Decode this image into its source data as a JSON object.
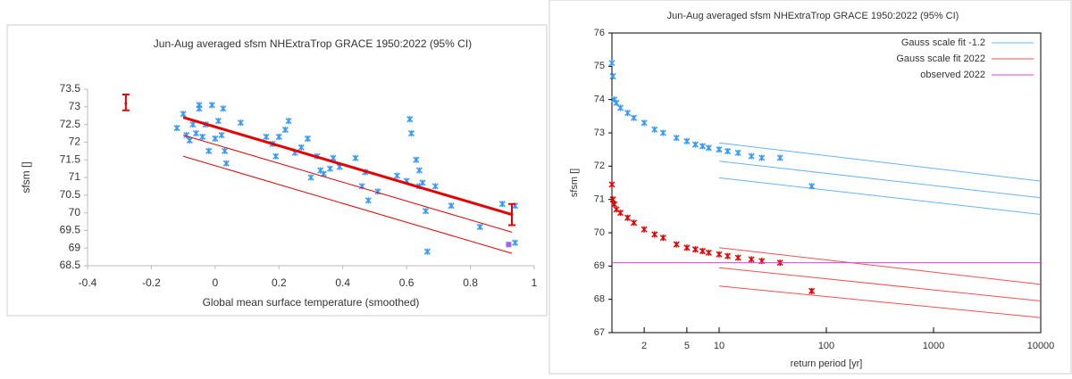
{
  "chart_data": [
    {
      "type": "scatter",
      "title": "Jun-Aug averaged  sfsm NHExtraTrop GRACE 1950:2022 (95% CI)",
      "xlabel": "Global mean surface temperature (smoothed)",
      "ylabel": "sfsm []",
      "xlim": [
        -0.4,
        1
      ],
      "xticks": [
        -0.4,
        -0.2,
        0,
        0.2,
        0.4,
        0.6,
        0.8,
        1
      ],
      "ylim": [
        68.5,
        73.5
      ],
      "yticks": [
        68.5,
        69,
        69.5,
        70,
        70.5,
        71,
        71.5,
        72,
        72.5,
        73,
        73.5
      ],
      "color": "#3399ff",
      "x": [
        -0.12,
        -0.1,
        -0.09,
        -0.08,
        -0.07,
        -0.06,
        -0.05,
        -0.05,
        -0.04,
        -0.03,
        -0.02,
        -0.01,
        0.0,
        0.01,
        0.02,
        0.025,
        0.03,
        0.035,
        0.08,
        0.16,
        0.18,
        0.19,
        0.2,
        0.22,
        0.23,
        0.25,
        0.27,
        0.29,
        0.3,
        0.32,
        0.33,
        0.34,
        0.36,
        0.37,
        0.39,
        0.44,
        0.46,
        0.47,
        0.48,
        0.51,
        0.57,
        0.6,
        0.61,
        0.615,
        0.63,
        0.64,
        0.64,
        0.65,
        0.66,
        0.665,
        0.69,
        0.74,
        0.83,
        0.9,
        0.94,
        0.94
      ],
      "values": [
        72.4,
        72.8,
        72.2,
        72.05,
        72.5,
        72.25,
        73.05,
        72.95,
        72.15,
        72.5,
        71.75,
        73.05,
        72.1,
        72.6,
        72.2,
        72.95,
        71.75,
        71.4,
        72.55,
        72.15,
        71.95,
        71.6,
        72.15,
        72.35,
        72.6,
        71.7,
        71.85,
        72.1,
        71.0,
        71.6,
        71.2,
        71.1,
        71.25,
        71.55,
        71.3,
        71.55,
        70.75,
        71.15,
        70.35,
        70.6,
        71.05,
        70.9,
        72.65,
        72.25,
        71.5,
        71.2,
        70.75,
        70.85,
        70.05,
        68.9,
        70.75,
        70.2,
        69.6,
        70.25,
        70.2,
        69.15
      ],
      "fit_color": "#e60000",
      "fit_lines": [
        {
          "x": [
            -0.1,
            0.93
          ],
          "values": [
            72.7,
            69.95
          ]
        },
        {
          "x": [
            -0.1,
            0.93
          ],
          "values": [
            72.2,
            69.45
          ]
        },
        {
          "x": [
            -0.1,
            0.93
          ],
          "values": [
            71.6,
            68.85
          ]
        }
      ],
      "error_bars": [
        {
          "x": -0.28,
          "value": 73.1,
          "low": 72.9,
          "high": 73.35
        },
        {
          "x": 0.93,
          "value": 69.95,
          "low": 69.65,
          "high": 70.25
        }
      ],
      "observed": {
        "x": 0.92,
        "value": 69.1,
        "color": "#9966ff"
      }
    },
    {
      "type": "line",
      "title": "Jun-Aug averaged  sfsm NHExtraTrop GRACE 1950:2022 (95% CI)",
      "xlabel": "return period [yr]",
      "ylabel": "sfsm []",
      "xlog": true,
      "xlim": [
        1,
        10000
      ],
      "xticks": [
        2,
        5,
        10,
        100,
        1000,
        10000
      ],
      "ylim": [
        67,
        76
      ],
      "yticks": [
        67,
        68,
        69,
        70,
        71,
        72,
        73,
        74,
        75,
        76
      ],
      "legend": "top-right",
      "series": [
        {
          "name": "Gauss scale fit -1.2",
          "color": "#66b3ff",
          "x": [
            10,
            10000
          ],
          "values": [
            72.15,
            71.05
          ],
          "upper": [
            72.7,
            71.55
          ],
          "lower": [
            71.65,
            70.55
          ],
          "points_x": [
            1.0,
            1.02,
            1.05,
            1.1,
            1.2,
            1.4,
            1.6,
            2,
            2.5,
            3,
            4,
            5,
            6,
            7,
            8,
            10,
            12,
            15,
            20,
            25,
            37,
            73
          ],
          "points": [
            75.1,
            74.7,
            74.0,
            73.9,
            73.75,
            73.6,
            73.45,
            73.3,
            73.1,
            73.0,
            72.85,
            72.75,
            72.65,
            72.6,
            72.55,
            72.5,
            72.45,
            72.4,
            72.3,
            72.25,
            72.25,
            71.4
          ],
          "point_color": "#3399ff"
        },
        {
          "name": "Gauss scale fit 2022",
          "color": "#ff4d4d",
          "x": [
            10,
            10000
          ],
          "values": [
            68.95,
            67.95
          ],
          "upper": [
            69.55,
            68.45
          ],
          "lower": [
            68.4,
            67.45
          ],
          "points_x": [
            1.0,
            1.02,
            1.05,
            1.1,
            1.2,
            1.4,
            1.6,
            2,
            2.5,
            3,
            4,
            5,
            6,
            7,
            8,
            10,
            12,
            15,
            20,
            25,
            37,
            73
          ],
          "points": [
            71.45,
            71.0,
            70.85,
            70.7,
            70.6,
            70.45,
            70.3,
            70.1,
            69.95,
            69.85,
            69.65,
            69.55,
            69.5,
            69.45,
            69.4,
            69.35,
            69.3,
            69.25,
            69.2,
            69.15,
            69.1,
            68.25
          ],
          "point_color": "#e60000"
        },
        {
          "name": "observed 2022",
          "color": "#e040e0",
          "x": [
            1,
            10000
          ],
          "values": [
            69.1,
            69.1
          ]
        }
      ]
    }
  ]
}
